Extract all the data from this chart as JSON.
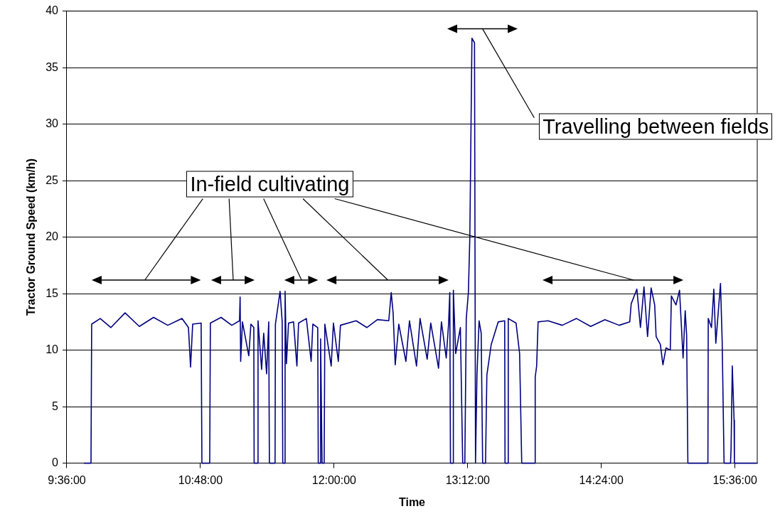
{
  "chart_data": {
    "type": "line",
    "xlabel": "Time",
    "ylabel": "Tractor Ground Speed (km/h)",
    "xlim": [
      9.6,
      15.8
    ],
    "xticks": [
      {
        "value": 9.6,
        "label": "9:36:00"
      },
      {
        "value": 10.8,
        "label": "10:48:00"
      },
      {
        "value": 12,
        "label": "12:00:00"
      },
      {
        "value": 13.2,
        "label": "13:12:00"
      },
      {
        "value": 14.4,
        "label": "14:24:00"
      },
      {
        "value": 15.6,
        "label": "15:36:00"
      }
    ],
    "ylim": [
      0,
      40
    ],
    "yticks": [
      0,
      5,
      10,
      15,
      20,
      25,
      30,
      35,
      40
    ],
    "grid": "y",
    "legend": false,
    "marker": "none",
    "line_style": "solid",
    "annotations": [
      "In-field cultivating",
      "Travelling between fields"
    ],
    "x": [
      9.753,
      9.817,
      9.823,
      9.9,
      9.996,
      10.123,
      10.251,
      10.379,
      10.506,
      10.634,
      10.692,
      10.711,
      10.73,
      10.806,
      10.813,
      10.883,
      10.889,
      10.985,
      11.081,
      11.151,
      11.156,
      11.161,
      11.177,
      11.234,
      11.253,
      11.279,
      11.282,
      11.314,
      11.317,
      11.349,
      11.368,
      11.394,
      11.413,
      11.419,
      11.47,
      11.473,
      11.515,
      11.534,
      11.539,
      11.556,
      11.56,
      11.572,
      11.591,
      11.636,
      11.666,
      11.681,
      11.751,
      11.794,
      11.809,
      11.853,
      11.858,
      11.876,
      11.879,
      11.892,
      11.911,
      11.917,
      11.974,
      11.994,
      12.038,
      12.057,
      12.198,
      12.294,
      12.389,
      12.491,
      12.513,
      12.53,
      12.549,
      12.581,
      12.645,
      12.677,
      12.74,
      12.772,
      12.836,
      12.868,
      12.938,
      12.964,
      13.007,
      13.028,
      13.039,
      13.045,
      13.068,
      13.071,
      13.092,
      13.134,
      13.155,
      13.174,
      13.187,
      13.206,
      13.219,
      13.238,
      13.261,
      13.27,
      13.283,
      13.302,
      13.321,
      13.334,
      13.36,
      13.372,
      13.411,
      13.474,
      13.532,
      13.535,
      13.561,
      13.564,
      13.634,
      13.666,
      13.685,
      13.804,
      13.806,
      13.819,
      13.832,
      13.921,
      14.049,
      14.177,
      14.304,
      14.432,
      14.56,
      14.655,
      14.668,
      14.719,
      14.751,
      14.783,
      14.815,
      14.847,
      14.879,
      14.892,
      14.93,
      14.953,
      14.981,
      15.019,
      15.029,
      15.07,
      15.102,
      15.134,
      15.153,
      15.166,
      15.177,
      15.357,
      15.36,
      15.389,
      15.41,
      15.428,
      15.447,
      15.47,
      15.485,
      15.502,
      15.56,
      15.565,
      15.576,
      15.592,
      15.595,
      15.798
    ],
    "series": [
      {
        "color": "#000080",
        "values": [
          0,
          0,
          12.3,
          12.8,
          12.0,
          13.3,
          12.1,
          12.9,
          12.2,
          12.8,
          12.0,
          8.5,
          12.3,
          12.4,
          0,
          0,
          12.4,
          12.9,
          12.2,
          12.6,
          14.7,
          9.0,
          12.5,
          9.5,
          12.3,
          12.0,
          0,
          0,
          12.6,
          8.3,
          11.5,
          7.9,
          12.5,
          0,
          0,
          12.3,
          15.2,
          12.5,
          0,
          0,
          15.2,
          8.8,
          12.4,
          12.5,
          8.6,
          12.4,
          12.8,
          9.0,
          12.3,
          12.0,
          0,
          0,
          11.0,
          0,
          0,
          12.3,
          8.6,
          12.4,
          9.0,
          12.2,
          12.6,
          12.0,
          12.7,
          12.6,
          15.1,
          13.3,
          8.7,
          12.3,
          9.0,
          12.6,
          8.6,
          12.8,
          9.2,
          12.4,
          8.4,
          12.5,
          9.3,
          12.3,
          15.1,
          0,
          0,
          15.3,
          9.7,
          12.0,
          0,
          0,
          12.8,
          15.1,
          20.0,
          37.6,
          37.2,
          0,
          7.8,
          12.6,
          11.5,
          0,
          0,
          7.8,
          10.5,
          12.5,
          12.6,
          0,
          0,
          12.8,
          12.4,
          9.7,
          0,
          0,
          7.6,
          8.6,
          12.5,
          12.6,
          12.2,
          12.8,
          12.1,
          12.7,
          12.2,
          12.5,
          14.1,
          15.4,
          12.0,
          15.6,
          11.2,
          15.5,
          14.0,
          11.2,
          10.5,
          8.7,
          10.2,
          10.0,
          14.8,
          14.0,
          15.3,
          9.3,
          13.5,
          11.3,
          0,
          0,
          12.8,
          12.0,
          15.4,
          10.6,
          13.0,
          15.9,
          10.8,
          0,
          0,
          1.3,
          8.6,
          3.8,
          0,
          0
        ]
      }
    ]
  }
}
